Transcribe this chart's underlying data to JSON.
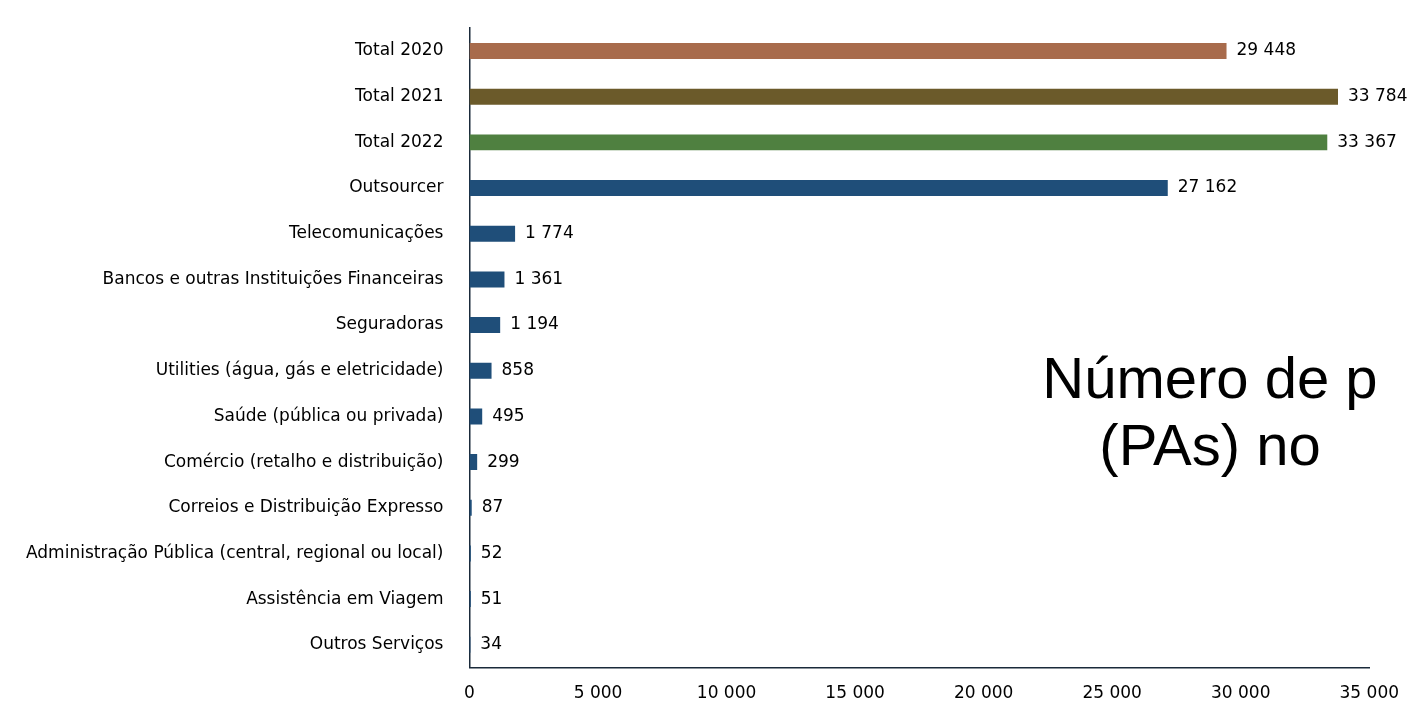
{
  "chart_data": {
    "type": "bar",
    "orientation": "horizontal",
    "title": "Número de p (PAs) no",
    "categories": [
      "Total 2020",
      "Total 2021",
      "Total 2022",
      "Outsourcer",
      "Telecomunicações",
      "Bancos e outras Instituições Financeiras",
      "Seguradoras",
      "Utilities (água, gás e eletricidade)",
      "Saúde (pública ou privada)",
      "Comércio (retalho e distribuição)",
      "Correios e Distribuição Expresso",
      "Administração Pública (central, regional ou local)",
      "Assistência em Viagem",
      "Outros Serviços"
    ],
    "values": [
      29448,
      33784,
      33367,
      27162,
      1774,
      1361,
      1194,
      858,
      495,
      299,
      87,
      52,
      51,
      34
    ],
    "value_labels": [
      "29 448",
      "33 784",
      "33 367",
      "27 162",
      "1 774",
      "1 361",
      "1 194",
      "858",
      "495",
      "299",
      "87",
      "52",
      "51",
      "34"
    ],
    "colors": [
      "#a86b4c",
      "#6b5a2a",
      "#4f8040",
      "#1f4e79",
      "#1f4e79",
      "#1f4e79",
      "#1f4e79",
      "#1f4e79",
      "#1f4e79",
      "#1f4e79",
      "#1f4e79",
      "#1f4e79",
      "#1f4e79",
      "#1f4e79"
    ],
    "xlim": [
      0,
      35000
    ],
    "xticks": [
      0,
      {
        "value": 5000,
        "label": "5 000"
      },
      {
        "value": 10000,
        "label": "10 000"
      },
      {
        "value": 15000,
        "label": "15 000"
      },
      {
        "value": 20000,
        "label": "20 000"
      },
      {
        "value": 25000,
        "label": "25 000"
      },
      {
        "value": 30000,
        "label": "30 000"
      },
      {
        "value": 35000,
        "label": "35 000"
      }
    ],
    "grid": false,
    "legend": false
  }
}
